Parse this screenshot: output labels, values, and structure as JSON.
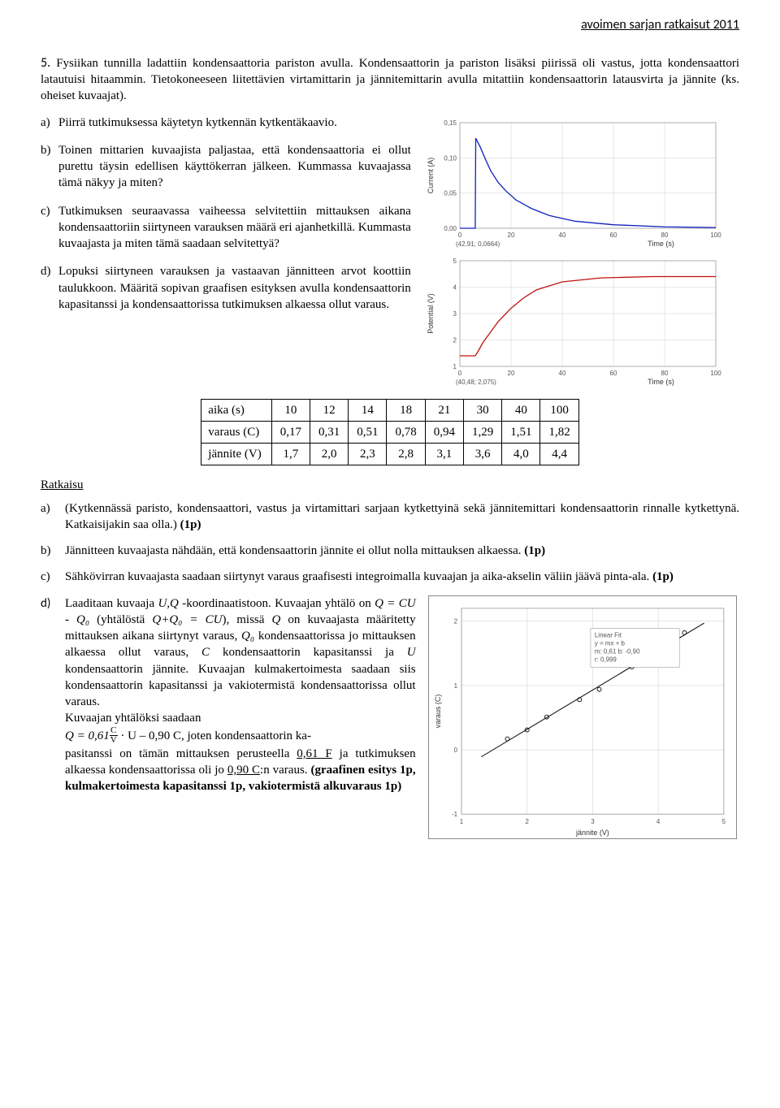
{
  "header": "avoimen sarjan ratkaisut 2011",
  "question_number": "5.",
  "intro": "Fysiikan tunnilla ladattiin kondensaattoria pariston avulla. Kondensaattorin ja pariston lisäksi piirissä oli vastus, jotta kondensaattori latautuisi hitaammin. Tietokoneeseen liitettävien virtamittarin ja jännitemittarin avulla mitattiin kondensaattorin latausvirta ja jännite (ks. oheiset kuvaajat).",
  "parts": {
    "a": {
      "label": "a)",
      "text": "Piirrä tutkimuksessa käytetyn kytkennän kytkentäkaavio."
    },
    "b": {
      "label": "b)",
      "text": "Toinen mittarien kuvaajista paljastaa, että kondensaattoria ei ollut purettu täysin edellisen käyttökerran jälkeen. Kummassa kuvaajassa tämä näkyy ja miten?"
    },
    "c": {
      "label": "c)",
      "text": "Tutkimuksen seuraavassa vaiheessa selvitettiin mittauksen aikana kondensaattoriin siirtyneen varauksen määrä eri ajanhetkillä. Kummasta kuvaajasta ja miten tämä saadaan selvitettyä?"
    },
    "d": {
      "label": "d)",
      "text": "Lopuksi siirtyneen varauksen ja vastaavan jännitteen arvot koottiin taulukkoon. Määritä sopivan graafisen esityksen avulla kondensaattorin kapasitanssi ja kondensaattorissa tutkimuksen alkaessa ollut varaus."
    }
  },
  "chart_current": {
    "ylabel": "Current (A)",
    "xlabel": "Time (s)",
    "marker": "(42,91; 0,0664)",
    "yticks": [
      "0,00",
      "0,05",
      "0,10",
      "0,15"
    ],
    "xticks": [
      "0",
      "20",
      "40",
      "60",
      "80",
      "100"
    ],
    "line_color": "#1020c0",
    "grid_color": "#d0d0d0",
    "points": [
      [
        0,
        0
      ],
      [
        6,
        0
      ],
      [
        6.2,
        0.128
      ],
      [
        8,
        0.115
      ],
      [
        10,
        0.098
      ],
      [
        12,
        0.082
      ],
      [
        15,
        0.065
      ],
      [
        18,
        0.053
      ],
      [
        22,
        0.04
      ],
      [
        28,
        0.028
      ],
      [
        35,
        0.018
      ],
      [
        45,
        0.01
      ],
      [
        60,
        0.005
      ],
      [
        80,
        0.002
      ],
      [
        100,
        0.001
      ]
    ]
  },
  "chart_voltage": {
    "ylabel": "Potential (V)",
    "xlabel": "Time (s)",
    "marker": "(40,48; 2,075)",
    "yticks": [
      "1",
      "2",
      "3",
      "4",
      "5"
    ],
    "xticks": [
      "0",
      "20",
      "40",
      "60",
      "80",
      "100"
    ],
    "line_color": "#c01010",
    "grid_color": "#d0d0d0",
    "points": [
      [
        0,
        1.4
      ],
      [
        6,
        1.4
      ],
      [
        7,
        1.55
      ],
      [
        9,
        1.9
      ],
      [
        12,
        2.3
      ],
      [
        15,
        2.7
      ],
      [
        20,
        3.2
      ],
      [
        25,
        3.6
      ],
      [
        30,
        3.9
      ],
      [
        40,
        4.2
      ],
      [
        55,
        4.35
      ],
      [
        75,
        4.4
      ],
      [
        100,
        4.4
      ]
    ]
  },
  "table": {
    "rows": [
      {
        "label": "aika (s)",
        "vals": [
          "10",
          "12",
          "14",
          "18",
          "21",
          "30",
          "40",
          "100"
        ]
      },
      {
        "label": "varaus (C)",
        "vals": [
          "0,17",
          "0,31",
          "0,51",
          "0,78",
          "0,94",
          "1,29",
          "1,51",
          "1,82"
        ]
      },
      {
        "label": "jännite (V)",
        "vals": [
          "1,7",
          "2,0",
          "2,3",
          "2,8",
          "3,1",
          "3,6",
          "4,0",
          "4,4"
        ]
      }
    ]
  },
  "ratkaisu_label": "Ratkaisu",
  "solutions": {
    "a": {
      "label": "a)",
      "text": "(Kytkennässä paristo, kondensaattori, vastus ja virtamittari sarjaan kytkettyinä sekä jännitemittari kondensaattorin rinnalle kytkettynä. Katkaisijakin saa olla.) (1p)"
    },
    "b": {
      "label": "b)",
      "text": "Jännitteen kuvaajasta nähdään, että kondensaattorin jännite ei ollut nolla mittauksen alkaessa. (1p)"
    },
    "c": {
      "label": "c)",
      "text": "Sähkövirran kuvaajasta saadaan siirtynyt varaus graafisesti integroimalla kuvaajan ja aika-akselin väliin jäävä pinta-ala. (1p)"
    },
    "d": {
      "label": "d)",
      "text1": "Laaditaan kuvaaja U,Q -koordinaatistoon. Kuvaajan yhtälö on Q = CU - Q₀ (yhtälöstä Q+Q₀ = CU), missä Q on kuvaajasta määritetty mittauksen aikana siirtynyt varaus, Q₀ kondensaattorissa jo mittauksen alkaessa ollut varaus, C kondensaattorin kapasitanssi ja U kondensaattorin jännite. Kuvaajan kulmakertoimesta saadaan siis kondensaattorin kapasitanssi ja vakiotermistä kondensaattorissa ollut varaus.",
      "text2": "Kuvaajan yhtälöksi saadaan",
      "eq_pre": "Q = 0,61",
      "eq_num": "C",
      "eq_den": "V",
      "eq_post": " · U – 0,90 C, joten kondensaattorin ka-",
      "text3": "pasitanssi on tämän mittauksen perusteella 0,61 F ja tutkimuksen alkaessa kondensaattorissa oli jo 0,90 C:n varaus. (graafinen esitys 1p, kulmakertoimesta kapasitanssi 1p, vakiotermistä alkuvaraus 1p)"
    }
  },
  "chart_linear": {
    "xlabel": "jännite (V)",
    "ylabel": "varaus (C)",
    "xticks": [
      "1",
      "2",
      "3",
      "4",
      "5"
    ],
    "yticks": [
      "-1",
      "0",
      "1",
      "2"
    ],
    "line_color": "#000",
    "grid_color": "#cccccc",
    "points": [
      [
        1.7,
        0.17
      ],
      [
        2.0,
        0.31
      ],
      [
        2.3,
        0.51
      ],
      [
        2.8,
        0.78
      ],
      [
        3.1,
        0.94
      ],
      [
        3.6,
        1.29
      ],
      [
        4.0,
        1.51
      ],
      [
        4.4,
        1.82
      ]
    ],
    "fit_x": [
      1.3,
      4.7
    ],
    "fit_y": [
      -0.11,
      1.97
    ]
  }
}
